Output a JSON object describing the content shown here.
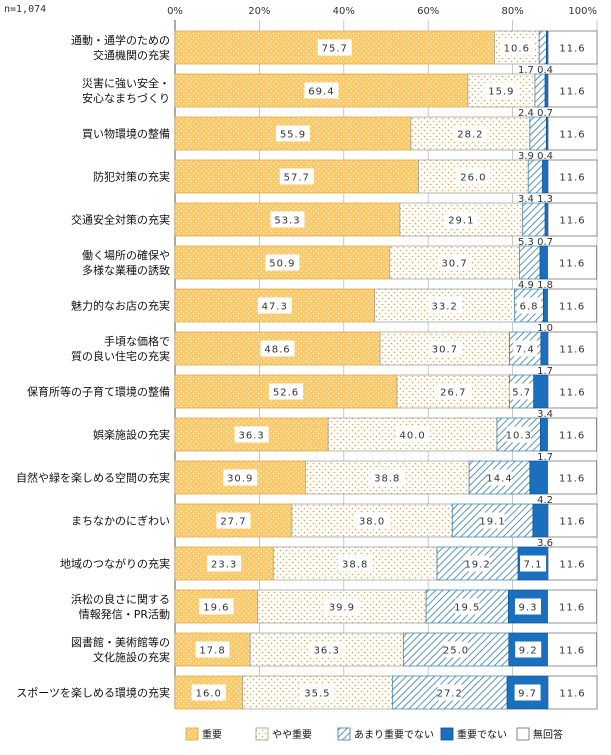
{
  "sample_size": "n=1,074",
  "colors": {
    "very_important": "#F9C96A",
    "somewhat_important": "#FFFFFF",
    "not_very_important": "#FFFFFF",
    "not_important": "#1A6FBF",
    "no_answer": "#FFFFFF",
    "pattern_dots": "#E6A33C",
    "pattern_hatch": "#2E7AA8",
    "grid": "#BBBBBB"
  },
  "chart_data": {
    "type": "bar",
    "orientation": "horizontal",
    "stacked": true,
    "xlim": [
      0,
      100
    ],
    "x_ticks": [
      "0%",
      "20%",
      "40%",
      "60%",
      "80%",
      "100%"
    ],
    "grid": true,
    "legend_position": "bottom",
    "categories": [
      "通動・通学のための\n交通機関の充実",
      "災害に強い安全・\n安心なまちづくり",
      "買い物環境の整備",
      "防犯対策の充実",
      "交通安全対策の充実",
      "働く場所の確保や\n多様な業種の誘致",
      "魅力的なお店の充実",
      "手頃な価格で\n質の良い住宅の充実",
      "保育所等の子育て環境の整備",
      "娯楽施設の充実",
      "自然や緑を楽しめる空間の充実",
      "まちなかのにぎわい",
      "地域のつながりの充実",
      "浜松の良さに関する\n情報発信・PR活動",
      "図書館・美術館等の\n文化施設の充実",
      "スポーツを楽しめる環境の充実"
    ],
    "series": [
      {
        "name": "重要",
        "values": [
          75.7,
          69.4,
          55.9,
          57.7,
          53.3,
          50.9,
          47.3,
          48.6,
          52.6,
          36.3,
          30.9,
          27.7,
          23.3,
          19.6,
          17.8,
          16.0
        ]
      },
      {
        "name": "やや重要",
        "values": [
          10.6,
          15.9,
          28.2,
          26.0,
          29.1,
          30.7,
          33.2,
          30.7,
          26.7,
          40.0,
          38.8,
          38.0,
          38.8,
          39.9,
          36.3,
          35.5
        ]
      },
      {
        "name": "あまり重要でない",
        "values": [
          1.7,
          2.4,
          3.9,
          3.4,
          5.3,
          4.9,
          6.8,
          7.4,
          5.7,
          10.3,
          14.4,
          19.1,
          19.2,
          19.5,
          25.0,
          27.2
        ]
      },
      {
        "name": "重要でない",
        "values": [
          0.4,
          0.7,
          0.4,
          1.3,
          0.7,
          1.8,
          1.0,
          1.7,
          3.4,
          1.7,
          4.2,
          3.6,
          7.1,
          9.3,
          9.2,
          9.7
        ]
      },
      {
        "name": "無回答",
        "values": [
          11.6,
          11.6,
          11.6,
          11.6,
          11.6,
          11.6,
          11.6,
          11.6,
          11.6,
          11.6,
          11.6,
          11.6,
          11.6,
          11.6,
          11.6,
          11.6
        ]
      }
    ],
    "data_labels": {
      "重要": [
        "75.7",
        "69.4",
        "55.9",
        "57.7",
        "53.3",
        "50.9",
        "47.3",
        "48.6",
        "52.6",
        "36.3",
        "30.9",
        "27.7",
        "23.3",
        "19.6",
        "17.8",
        "16.0"
      ],
      "やや重要": [
        "10.6",
        "15.9",
        "28.2",
        "26.0",
        "29.1",
        "30.7",
        "33.2",
        "30.7",
        "26.7",
        "40.0",
        "38.8",
        "38.0",
        "38.8",
        "39.9",
        "36.3",
        "35.5"
      ],
      "あまり重要でない": [
        null,
        null,
        null,
        null,
        null,
        null,
        "6.8",
        "7.4",
        "5.7",
        "10.3",
        "14.4",
        "19.1",
        "19.2",
        "19.5",
        "25.0",
        "27.2"
      ],
      "重要でない": [
        null,
        null,
        null,
        null,
        null,
        null,
        null,
        null,
        null,
        null,
        null,
        null,
        "7.1",
        "9.3",
        "9.2",
        "9.7"
      ],
      "無回答": [
        "11.6",
        "11.6",
        "11.6",
        "11.6",
        "11.6",
        "11.6",
        "11.6",
        "11.6",
        "11.6",
        "11.6",
        "11.6",
        "11.6",
        "11.6",
        "11.6",
        "11.6",
        "11.6"
      ]
    },
    "annotations_below": [
      "1.7  0.4",
      "2.4  0.7",
      "3.9  0.4",
      "3.4  1.3",
      "5.3  0.7",
      "4.9  1.8",
      "1.0",
      "1.7",
      "3.4",
      "1.7",
      "4.2",
      "3.6",
      null,
      null,
      null,
      null
    ]
  }
}
